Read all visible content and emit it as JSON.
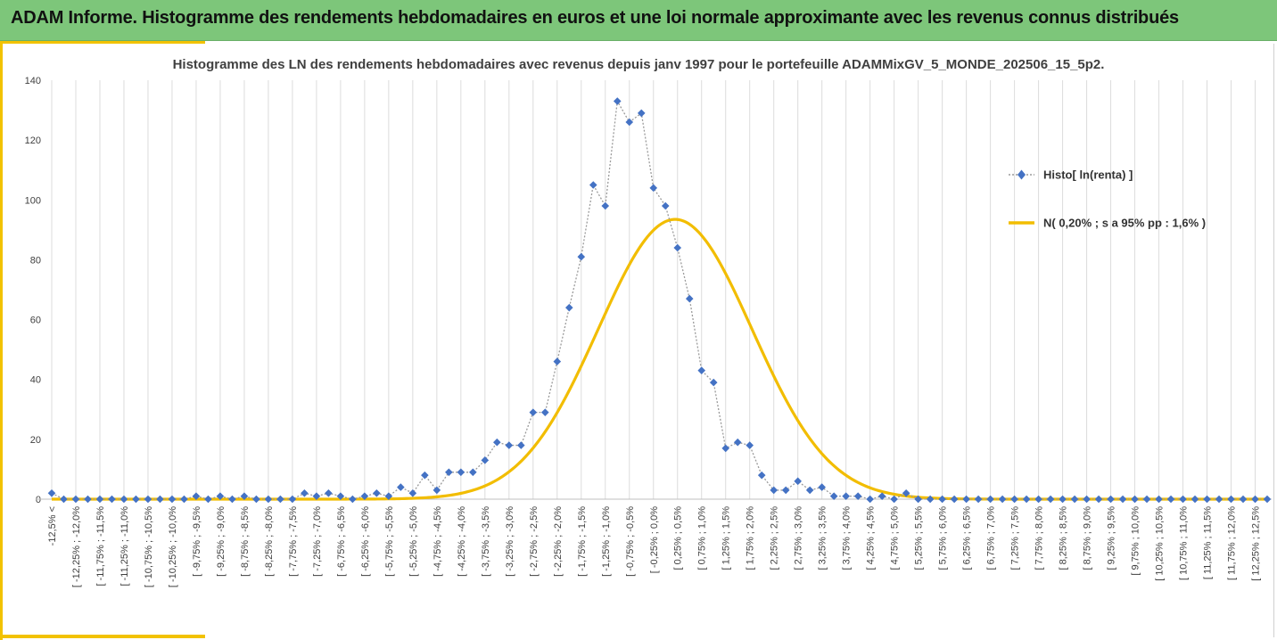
{
  "header": {
    "title": "ADAM Informe. Histogramme des rendements hebdomadaires en euros et une loi normale approximante avec les revenus connus distribués"
  },
  "chart_data": {
    "type": "scatter",
    "title": "Histogramme des LN des rendements hebdomadaires avec revenus depuis janv 1997 pour le portefeuille ADAMMixGV_5_MONDE_202506_15_5p2.",
    "xlabel": "",
    "ylabel": "",
    "ylim": [
      0,
      140
    ],
    "yticks": [
      0,
      20,
      40,
      60,
      80,
      100,
      120,
      140
    ],
    "grid": "vertical",
    "legend_position": "right",
    "categories": [
      "-12,5% <",
      "[ -12,25% ; -12,0%",
      "[ -11,75% ; -11,5%",
      "[ -11,25% ; -11,0%",
      "[ -10,75% ; -10,5%",
      "[ -10,25% ; -10,0%",
      "[ -9,75% ; -9,5%",
      "[ -9,25% ; -9,0%",
      "[ -8,75% ; -8,5%",
      "[ -8,25% ; -8,0%",
      "[ -7,75% ; -7,5%",
      "[ -7,25% ; -7,0%",
      "[ -6,75% ; -6,5%",
      "[ -6,25% ; -6,0%",
      "[ -5,75% ; -5,5%",
      "[ -5,25% ; -5,0%",
      "[ -4,75% ; -4,5%",
      "[ -4,25% ; -4,0%",
      "[ -3,75% ; -3,5%",
      "[ -3,25% ; -3,0%",
      "[ -2,75% ; -2,5%",
      "[ -2,25% ; -2,0%",
      "[ -1,75% ; -1,5%",
      "[ -1,25% ; -1,0%",
      "[ -0,75% ; -0,5%",
      "[ -0,25% ; 0,0%",
      "[ 0,25% ; 0,5%",
      "[ 0,75% ; 1,0%",
      "[ 1,25% ; 1,5%",
      "[ 1,75% ; 2,0%",
      "[ 2,25% ; 2,5%",
      "[ 2,75% ; 3,0%",
      "[ 3,25% ; 3,5%",
      "[ 3,75% ; 4,0%",
      "[ 4,25% ; 4,5%",
      "[ 4,75% ; 5,0%",
      "[ 5,25% ; 5,5%",
      "[ 5,75% ; 6,0%",
      "[ 6,25% ; 6,5%",
      "[ 6,75% ; 7,0%",
      "[ 7,25% ; 7,5%",
      "[ 7,75% ; 8,0%",
      "[ 8,25% ; 8,5%",
      "[ 8,75% ; 9,0%",
      "[ 9,25% ; 9,5%",
      "[ 9,75% ; 10,0%",
      "[ 10,25% ; 10,5%",
      "[ 10,75% ; 11,0%",
      "[ 11,25% ; 11,5%",
      "[ 11,75% ; 12,0%",
      "[ 12,25% ; 12,5%"
    ],
    "series": [
      {
        "name": "Histo[ ln(renta) ]",
        "style": "markers-dotted-line",
        "color": "#4472c4",
        "values": [
          2,
          0,
          0,
          0,
          0,
          0,
          0,
          0,
          0,
          0,
          0,
          0,
          1,
          0,
          1,
          0,
          1,
          0,
          0,
          0,
          0,
          2,
          1,
          2,
          1,
          0,
          1,
          2,
          1,
          4,
          2,
          8,
          3,
          9,
          9,
          9,
          13,
          19,
          18,
          18,
          29,
          29,
          46,
          64,
          81,
          105,
          98,
          133,
          126,
          129,
          104,
          98,
          84,
          67,
          43,
          39,
          17,
          19,
          18,
          8,
          3,
          3,
          6,
          3,
          4,
          1,
          1,
          1,
          0,
          1,
          0,
          2,
          0,
          0,
          0,
          0,
          0,
          0,
          0,
          0,
          0,
          0,
          0,
          0,
          0,
          0,
          0,
          0,
          0,
          0,
          0,
          0,
          0,
          0,
          0,
          0,
          0,
          0,
          0,
          0,
          0,
          0
        ]
      },
      {
        "name": "N( 0,20% ; s a 95% pp : 1,6% )",
        "style": "smooth-line",
        "color": "#f2bd00",
        "mean": 0.2,
        "sd": 1.6,
        "peak": 93.5
      }
    ]
  }
}
